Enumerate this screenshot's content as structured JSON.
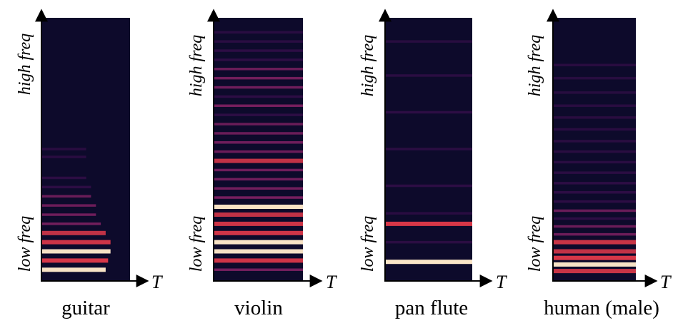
{
  "axis": {
    "high_label": "high freq",
    "low_label": "low freq",
    "time_label": "T"
  },
  "colors": {
    "background": "#0d0a2b",
    "dim": "#3b0f4f",
    "mid": "#8c2369",
    "bright": "#e0394a",
    "peak": "#fbe6c8"
  },
  "spectrograms": [
    {
      "name": "guitar",
      "harmonics": [
        {
          "f": 0.04,
          "i": 0.97,
          "decay": 0.5
        },
        {
          "f": 0.075,
          "i": 0.9,
          "decay": 0.45
        },
        {
          "f": 0.11,
          "i": 0.95,
          "decay": 0.4
        },
        {
          "f": 0.145,
          "i": 0.8,
          "decay": 0.4
        },
        {
          "f": 0.18,
          "i": 0.7,
          "decay": 0.5
        },
        {
          "f": 0.215,
          "i": 0.55,
          "decay": 0.6
        },
        {
          "f": 0.25,
          "i": 0.5,
          "decay": 0.7
        },
        {
          "f": 0.285,
          "i": 0.45,
          "decay": 0.7
        },
        {
          "f": 0.32,
          "i": 0.4,
          "decay": 0.8
        },
        {
          "f": 0.355,
          "i": 0.3,
          "decay": 0.8
        },
        {
          "f": 0.39,
          "i": 0.28,
          "decay": 0.9
        },
        {
          "f": 0.47,
          "i": 0.15,
          "decay": 0.9
        },
        {
          "f": 0.5,
          "i": 0.14,
          "decay": 0.9
        }
      ]
    },
    {
      "name": "violin",
      "harmonics": [
        {
          "f": 0.04,
          "i": 0.55,
          "decay": 0
        },
        {
          "f": 0.075,
          "i": 0.8,
          "decay": 0
        },
        {
          "f": 0.11,
          "i": 0.95,
          "decay": 0
        },
        {
          "f": 0.145,
          "i": 0.97,
          "decay": 0
        },
        {
          "f": 0.18,
          "i": 0.85,
          "decay": 0
        },
        {
          "f": 0.215,
          "i": 0.8,
          "decay": 0
        },
        {
          "f": 0.25,
          "i": 0.7,
          "decay": 0
        },
        {
          "f": 0.28,
          "i": 0.98,
          "decay": 0
        },
        {
          "f": 0.315,
          "i": 0.65,
          "decay": 0
        },
        {
          "f": 0.35,
          "i": 0.55,
          "decay": 0
        },
        {
          "f": 0.385,
          "i": 0.5,
          "decay": 0
        },
        {
          "f": 0.42,
          "i": 0.5,
          "decay": 0
        },
        {
          "f": 0.455,
          "i": 0.7,
          "decay": 0
        },
        {
          "f": 0.49,
          "i": 0.45,
          "decay": 0
        },
        {
          "f": 0.525,
          "i": 0.5,
          "decay": 0
        },
        {
          "f": 0.56,
          "i": 0.4,
          "decay": 0
        },
        {
          "f": 0.595,
          "i": 0.4,
          "decay": 0
        },
        {
          "f": 0.63,
          "i": 0.35,
          "decay": 0
        },
        {
          "f": 0.665,
          "i": 0.6,
          "decay": 0
        },
        {
          "f": 0.7,
          "i": 0.35,
          "decay": 0
        },
        {
          "f": 0.735,
          "i": 0.5,
          "decay": 0
        },
        {
          "f": 0.77,
          "i": 0.55,
          "decay": 0
        },
        {
          "f": 0.805,
          "i": 0.4,
          "decay": 0
        },
        {
          "f": 0.84,
          "i": 0.3,
          "decay": 0
        },
        {
          "f": 0.875,
          "i": 0.3,
          "decay": 0
        },
        {
          "f": 0.91,
          "i": 0.22,
          "decay": 0
        },
        {
          "f": 0.945,
          "i": 0.15,
          "decay": 0
        }
      ]
    },
    {
      "name": "pan flute",
      "harmonics": [
        {
          "f": 0.07,
          "i": 0.99,
          "decay": 0
        },
        {
          "f": 0.145,
          "i": 0.25,
          "decay": 0
        },
        {
          "f": 0.215,
          "i": 0.92,
          "decay": 0
        },
        {
          "f": 0.255,
          "i": 0.15,
          "decay": 0
        },
        {
          "f": 0.36,
          "i": 0.35,
          "decay": 0
        },
        {
          "f": 0.5,
          "i": 0.25,
          "decay": 0
        },
        {
          "f": 0.64,
          "i": 0.3,
          "decay": 0
        },
        {
          "f": 0.78,
          "i": 0.22,
          "decay": 0
        },
        {
          "f": 0.91,
          "i": 0.12,
          "decay": 0
        }
      ]
    },
    {
      "name": "human (male)",
      "harmonics": [
        {
          "f": 0.035,
          "i": 0.75,
          "decay": 0
        },
        {
          "f": 0.06,
          "i": 0.98,
          "decay": 0
        },
        {
          "f": 0.085,
          "i": 0.92,
          "decay": 0
        },
        {
          "f": 0.11,
          "i": 0.7,
          "decay": 0
        },
        {
          "f": 0.145,
          "i": 0.75,
          "decay": 0
        },
        {
          "f": 0.175,
          "i": 0.45,
          "decay": 0
        },
        {
          "f": 0.205,
          "i": 0.4,
          "decay": 0
        },
        {
          "f": 0.235,
          "i": 0.35,
          "decay": 0
        },
        {
          "f": 0.265,
          "i": 0.4,
          "decay": 0
        },
        {
          "f": 0.3,
          "i": 0.3,
          "decay": 0
        },
        {
          "f": 0.335,
          "i": 0.3,
          "decay": 0
        },
        {
          "f": 0.37,
          "i": 0.32,
          "decay": 0
        },
        {
          "f": 0.41,
          "i": 0.25,
          "decay": 0
        },
        {
          "f": 0.45,
          "i": 0.22,
          "decay": 0
        },
        {
          "f": 0.49,
          "i": 0.2,
          "decay": 0
        },
        {
          "f": 0.53,
          "i": 0.2,
          "decay": 0
        },
        {
          "f": 0.575,
          "i": 0.16,
          "decay": 0
        },
        {
          "f": 0.62,
          "i": 0.14,
          "decay": 0
        },
        {
          "f": 0.665,
          "i": 0.14,
          "decay": 0
        },
        {
          "f": 0.715,
          "i": 0.12,
          "decay": 0
        },
        {
          "f": 0.77,
          "i": 0.12,
          "decay": 0
        },
        {
          "f": 0.82,
          "i": 0.14,
          "decay": 0
        }
      ]
    }
  ]
}
